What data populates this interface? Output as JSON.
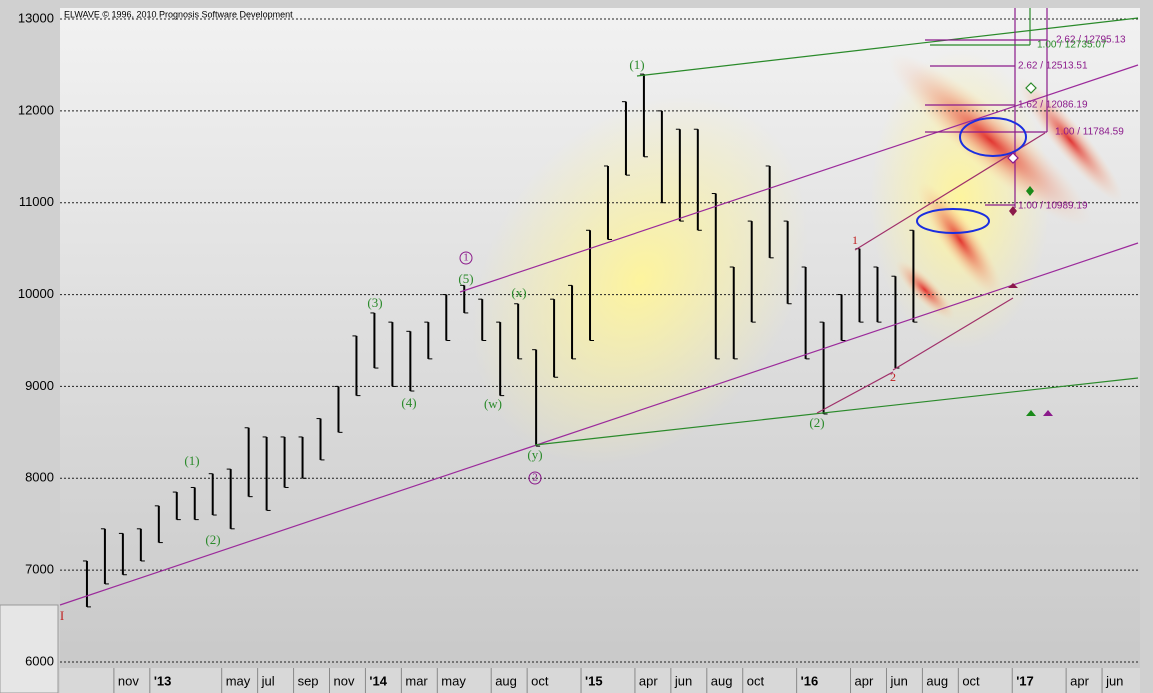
{
  "chart_data": {
    "type": "range",
    "title": "ELWAVE © 1996, 2010 Prognosis Software Development",
    "color": "#000000",
    "x": [
      "2012-09",
      "2012-10",
      "2012-11",
      "2012-12",
      "2013-01",
      "2013-02",
      "2013-03",
      "2013-04",
      "2013-05",
      "2013-06",
      "2013-07",
      "2013-08",
      "2013-09",
      "2013-10",
      "2013-11",
      "2013-12",
      "2014-01",
      "2014-02",
      "2014-03",
      "2014-04",
      "2014-05",
      "2014-06",
      "2014-07",
      "2014-08",
      "2014-09",
      "2014-10",
      "2014-11",
      "2014-12",
      "2015-01",
      "2015-02",
      "2015-03",
      "2015-04",
      "2015-05",
      "2015-06",
      "2015-07",
      "2015-08",
      "2015-09",
      "2015-10",
      "2015-11",
      "2015-12",
      "2016-01",
      "2016-02",
      "2016-03",
      "2016-04",
      "2016-05",
      "2016-06",
      "2016-07"
    ],
    "high": [
      7100,
      7450,
      7400,
      7450,
      7700,
      7850,
      7900,
      8050,
      8100,
      8550,
      8450,
      8450,
      8450,
      8650,
      9000,
      9550,
      9800,
      9700,
      9600,
      9700,
      10000,
      10100,
      9950,
      9700,
      9900,
      9400,
      9950,
      10100,
      10700,
      11400,
      12100,
      12400,
      12000,
      11800,
      11800,
      11100,
      10300,
      10800,
      11400,
      10800,
      10300,
      9700,
      10000,
      10500,
      10300,
      10200,
      10700
    ],
    "low": [
      6600,
      6850,
      6950,
      7100,
      7300,
      7550,
      7550,
      7600,
      7450,
      7800,
      7650,
      7900,
      8000,
      8200,
      8500,
      8900,
      9200,
      9000,
      8950,
      9300,
      9500,
      9800,
      9500,
      8900,
      9300,
      8350,
      9100,
      9300,
      9500,
      10600,
      11300,
      11500,
      11000,
      10800,
      10700,
      9300,
      9300,
      9700,
      10400,
      9900,
      9300,
      8700,
      9500,
      9700,
      9700,
      9200,
      9700
    ],
    "xlim": [
      "2012-08",
      "2017-08"
    ],
    "xticks": [
      {
        "value": "2012-11",
        "label": "nov"
      },
      {
        "value": "2013-01",
        "label": "'13"
      },
      {
        "value": "2013-05",
        "label": "may"
      },
      {
        "value": "2013-07",
        "label": "jul"
      },
      {
        "value": "2013-09",
        "label": "sep"
      },
      {
        "value": "2013-11",
        "label": "nov"
      },
      {
        "value": "2014-01",
        "label": "'14"
      },
      {
        "value": "2014-03",
        "label": "mar"
      },
      {
        "value": "2014-05",
        "label": "may"
      },
      {
        "value": "2014-08",
        "label": "aug"
      },
      {
        "value": "2014-10",
        "label": "oct"
      },
      {
        "value": "2015-01",
        "label": "'15"
      },
      {
        "value": "2015-04",
        "label": "apr"
      },
      {
        "value": "2015-06",
        "label": "jun"
      },
      {
        "value": "2015-08",
        "label": "aug"
      },
      {
        "value": "2015-10",
        "label": "oct"
      },
      {
        "value": "2016-01",
        "label": "'16"
      },
      {
        "value": "2016-04",
        "label": "apr"
      },
      {
        "value": "2016-06",
        "label": "jun"
      },
      {
        "value": "2016-08",
        "label": "aug"
      },
      {
        "value": "2016-10",
        "label": "oct"
      },
      {
        "value": "2017-01",
        "label": "'17"
      },
      {
        "value": "2017-04",
        "label": "apr"
      },
      {
        "value": "2017-06",
        "label": "jun"
      }
    ],
    "ylim": [
      6000,
      13000
    ],
    "yticks": [
      6000,
      7000,
      8000,
      9000,
      10000,
      11000,
      12000,
      13000
    ],
    "grid": true,
    "annotations": [
      "I",
      "(1)",
      "(2)",
      "(3)",
      "(4)",
      "(5)",
      "(w)",
      "(x)",
      "(y)",
      "(1)",
      "(2)",
      "1",
      "2",
      "1",
      "2",
      "2.62 / 12795.13",
      "1.00 / 12735.07",
      "2.62 / 12513.51",
      "1.62 / 12086.19",
      "1.00 / 11784.59",
      "1.00 / 10989.19"
    ]
  }
}
